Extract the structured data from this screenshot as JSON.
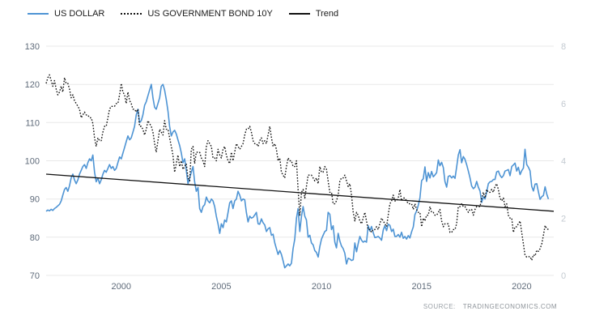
{
  "source": {
    "label": "SOURCE:",
    "site": "TRADINGECONOMICS.COM"
  },
  "chart_data": {
    "type": "line",
    "x_range": [
      1996.25,
      2021.6
    ],
    "x_axis": {
      "ticks": [
        2000,
        2005,
        2010,
        2015,
        2020
      ]
    },
    "left_axis": {
      "range": [
        70,
        130
      ],
      "ticks": [
        70,
        80,
        90,
        100,
        110,
        120,
        130
      ]
    },
    "right_axis": {
      "range": [
        0,
        8
      ],
      "ticks": [
        0,
        2,
        4,
        6,
        8
      ]
    },
    "grid_color": "#e8e8e8",
    "legend_position": "top-left",
    "series": [
      {
        "name": "US DOLLAR",
        "axis": "left",
        "color": "#4e94d4",
        "width": 1.6,
        "style": "solid",
        "x_start": 1996.25,
        "x_step": 0.0833333,
        "values": [
          86.8,
          87.1,
          86.9,
          87.3,
          87.0,
          87.5,
          87.8,
          88.2,
          88.6,
          89.5,
          91.0,
          92.5,
          93.0,
          92.0,
          93.5,
          95.5,
          96.5,
          95.0,
          94.0,
          95.0,
          96.5,
          97.5,
          98.5,
          99.0,
          98.0,
          99.5,
          100.5,
          100.0,
          101.5,
          97.0,
          94.5,
          95.5,
          94.0,
          95.0,
          96.5,
          97.5,
          97.0,
          98.0,
          99.0,
          98.0,
          98.5,
          97.5,
          98.0,
          99.5,
          101.0,
          100.5,
          102.0,
          103.5,
          105.0,
          106.5,
          105.5,
          106.0,
          107.5,
          109.0,
          112.0,
          113.5,
          110.0,
          110.5,
          112.0,
          114.5,
          115.5,
          117.0,
          118.5,
          120.0,
          116.5,
          114.0,
          113.5,
          115.0,
          116.5,
          119.5,
          120.0,
          118.5,
          116.0,
          113.0,
          109.0,
          106.5,
          107.5,
          108.0,
          107.0,
          105.5,
          104.0,
          102.0,
          99.5,
          100.5,
          97.5,
          94.0,
          95.5,
          97.0,
          98.5,
          94.5,
          92.0,
          93.0,
          87.5,
          86.5,
          88.0,
          88.5,
          90.5,
          89.5,
          89.0,
          90.0,
          89.5,
          88.0,
          85.5,
          83.5,
          81.0,
          83.5,
          82.5,
          84.5,
          84.0,
          86.5,
          89.0,
          89.5,
          87.5,
          89.5,
          90.0,
          92.0,
          91.0,
          89.5,
          90.0,
          89.8,
          86.5,
          84.0,
          85.5,
          85.0,
          85.2,
          85.8,
          86.5,
          83.5,
          83.4,
          84.8,
          83.8,
          83.2,
          81.5,
          82.2,
          82.5,
          80.5,
          80.8,
          78.5,
          77.0,
          75.5,
          76.5,
          75.5,
          73.8,
          72.0,
          72.5,
          73.0,
          72.5,
          73.2,
          77.0,
          79.5,
          85.0,
          87.5,
          81.5,
          85.5,
          88.0,
          85.5,
          84.5,
          80.0,
          80.5,
          78.5,
          78.0,
          76.5,
          76.0,
          74.8,
          77.5,
          79.5,
          80.5,
          81.5,
          81.8,
          86.5,
          86.0,
          82.0,
          83.0,
          78.7,
          77.2,
          81.0,
          79.0,
          77.7,
          77.0,
          75.8,
          73.0,
          74.5,
          74.3,
          73.9,
          74.1,
          78.5,
          76.2,
          78.3,
          80.2,
          79.2,
          78.7,
          79.0,
          78.7,
          83.0,
          81.6,
          82.8,
          81.2,
          79.9,
          80.0,
          80.2,
          79.8,
          79.2,
          81.9,
          83.0,
          81.7,
          83.4,
          83.1,
          81.5,
          82.1,
          80.2,
          80.2,
          80.7,
          80.0,
          81.3,
          79.7,
          80.2,
          79.5,
          80.4,
          79.8,
          81.4,
          82.7,
          85.9,
          86.9,
          88.3,
          90.3,
          94.8,
          95.3,
          98.4,
          94.6,
          96.9,
          95.5,
          97.2,
          95.8,
          96.3,
          96.9,
          100.2,
          98.7,
          99.6,
          98.2,
          94.6,
          93.1,
          95.9,
          96.1,
          95.5,
          96.0,
          95.4,
          98.3,
          101.5,
          102.9,
          99.5,
          101.1,
          100.4,
          99.0,
          97.3,
          95.6,
          93.4,
          92.7,
          93.1,
          94.6,
          93.1,
          92.1,
          89.1,
          90.6,
          90.0,
          91.8,
          94.0,
          94.5,
          94.6,
          95.1,
          95.1,
          97.1,
          97.3,
          96.2,
          95.6,
          96.1,
          97.3,
          97.5,
          97.7,
          96.1,
          98.5,
          98.9,
          99.4,
          97.3,
          98.3,
          96.4,
          97.4,
          98.1,
          103.0,
          99.0,
          98.3,
          97.4,
          93.3,
          92.1,
          93.9,
          94.0,
          91.9,
          89.9,
          90.6,
          90.9,
          93.2,
          91.3,
          90.0
        ]
      },
      {
        "name": "US GOVERNMENT BOND 10Y",
        "axis": "right",
        "color": "#111111",
        "width": 1.4,
        "style": "dotted",
        "dash": "1.6 2",
        "x_start": 1996.25,
        "x_step": 0.0833333,
        "values": [
          6.7,
          6.9,
          7.0,
          6.8,
          6.6,
          6.8,
          6.5,
          6.3,
          6.4,
          6.6,
          6.4,
          6.9,
          6.7,
          6.7,
          6.5,
          6.2,
          6.3,
          6.1,
          6.0,
          5.9,
          5.8,
          5.5,
          5.6,
          5.7,
          5.6,
          5.6,
          5.5,
          5.5,
          5.3,
          4.8,
          4.5,
          4.8,
          4.7,
          4.7,
          5.0,
          5.2,
          5.2,
          5.5,
          5.8,
          5.9,
          5.9,
          5.9,
          6.0,
          6.0,
          6.3,
          6.7,
          6.4,
          6.3,
          6.0,
          6.4,
          6.1,
          6.0,
          5.8,
          5.8,
          5.7,
          5.8,
          5.2,
          5.2,
          5.1,
          4.9,
          5.1,
          5.4,
          5.3,
          5.2,
          5.0,
          4.6,
          4.3,
          4.7,
          5.1,
          5.0,
          4.9,
          5.4,
          5.1,
          5.1,
          4.8,
          4.5,
          4.2,
          3.6,
          3.9,
          4.2,
          3.8,
          4.0,
          3.7,
          3.8,
          3.9,
          3.4,
          3.3,
          4.4,
          4.5,
          3.9,
          4.3,
          4.3,
          4.3,
          4.1,
          4.0,
          3.8,
          4.5,
          4.7,
          4.6,
          4.5,
          4.1,
          4.1,
          4.0,
          4.4,
          4.2,
          4.1,
          4.4,
          4.5,
          4.2,
          4.0,
          3.9,
          4.3,
          4.0,
          4.3,
          4.6,
          4.5,
          4.4,
          4.5,
          4.6,
          4.9,
          5.1,
          5.1,
          5.2,
          5.0,
          4.7,
          4.6,
          4.6,
          4.5,
          4.7,
          4.8,
          4.6,
          4.7,
          4.6,
          4.9,
          5.2,
          4.8,
          4.5,
          4.6,
          4.4,
          4.0,
          4.1,
          3.6,
          3.5,
          3.4,
          3.8,
          4.1,
          4.0,
          4.0,
          3.8,
          3.8,
          4.0,
          3.0,
          2.1,
          2.9,
          3.0,
          2.7,
          3.1,
          3.5,
          3.5,
          3.5,
          3.4,
          3.3,
          3.4,
          3.2,
          3.8,
          3.6,
          3.6,
          3.8,
          3.7,
          3.3,
          2.9,
          2.9,
          2.5,
          2.5,
          2.6,
          2.8,
          3.3,
          3.4,
          3.4,
          3.5,
          3.3,
          3.1,
          3.2,
          2.8,
          2.2,
          1.9,
          2.2,
          2.1,
          1.9,
          1.8,
          2.0,
          2.2,
          1.9,
          1.6,
          1.6,
          1.5,
          1.6,
          1.6,
          1.7,
          1.6,
          1.8,
          2.0,
          1.9,
          1.8,
          1.7,
          2.1,
          2.5,
          2.6,
          2.8,
          2.6,
          2.6,
          2.7,
          3.0,
          2.6,
          2.7,
          2.7,
          2.6,
          2.5,
          2.5,
          2.5,
          2.3,
          2.5,
          2.3,
          2.2,
          2.2,
          1.7,
          2.0,
          1.9,
          2.1,
          2.1,
          2.4,
          2.2,
          2.2,
          2.1,
          2.1,
          2.2,
          2.3,
          1.9,
          1.7,
          1.8,
          1.8,
          1.8,
          1.5,
          1.5,
          1.6,
          1.6,
          1.8,
          2.4,
          2.4,
          2.5,
          2.4,
          2.4,
          2.3,
          2.2,
          2.3,
          2.3,
          2.1,
          2.3,
          2.4,
          2.4,
          2.4,
          2.7,
          2.9,
          2.7,
          3.0,
          2.9,
          2.9,
          3.0,
          2.9,
          3.1,
          3.2,
          3.0,
          2.7,
          2.6,
          2.7,
          2.4,
          2.5,
          2.1,
          2.0,
          2.0,
          1.5,
          1.7,
          1.7,
          1.8,
          1.9,
          1.5,
          1.1,
          0.7,
          0.64,
          0.65,
          0.66,
          0.53,
          0.72,
          0.68,
          0.88,
          0.84,
          0.93,
          1.1,
          1.4,
          1.74,
          1.63,
          1.6
        ]
      },
      {
        "name": "Trend",
        "axis": "left",
        "color": "#111111",
        "width": 1.3,
        "style": "solid",
        "x": [
          1996.25,
          2021.6
        ],
        "values": [
          96.5,
          86.8
        ]
      }
    ]
  }
}
